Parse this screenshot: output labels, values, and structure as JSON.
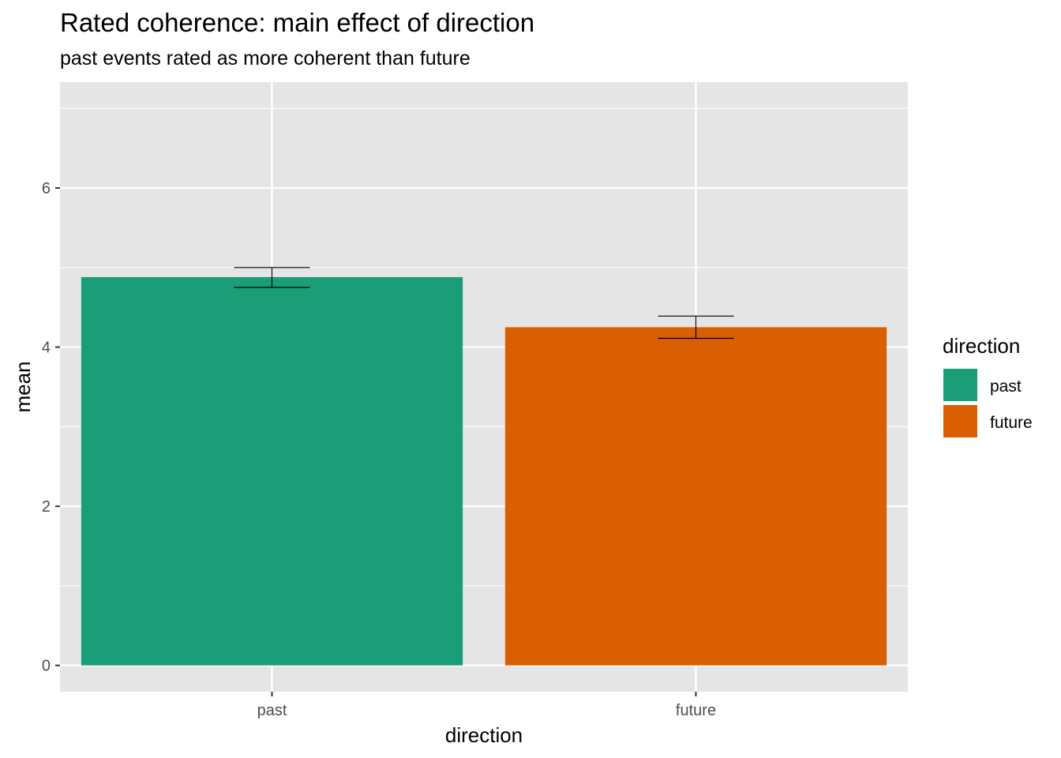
{
  "chart_data": {
    "type": "bar",
    "title": "Rated coherence: main effect of direction",
    "subtitle": "past events rated as more coherent than future",
    "xlabel": "direction",
    "ylabel": "mean",
    "categories": [
      "past",
      "future"
    ],
    "values": [
      4.88,
      4.25
    ],
    "error_bars": [
      {
        "category": "past",
        "low": 4.75,
        "high": 5.0
      },
      {
        "category": "future",
        "low": 4.11,
        "high": 4.39
      }
    ],
    "colors": [
      "#1b9e77",
      "#d95f02"
    ],
    "ylim": [
      -0.33,
      7.33
    ],
    "yticks": [
      0,
      2,
      4,
      6
    ],
    "grid": true,
    "legend": {
      "title": "direction",
      "position": "right",
      "items": [
        {
          "label": "past",
          "color": "#1b9e77"
        },
        {
          "label": "future",
          "color": "#d95f02"
        }
      ]
    }
  }
}
